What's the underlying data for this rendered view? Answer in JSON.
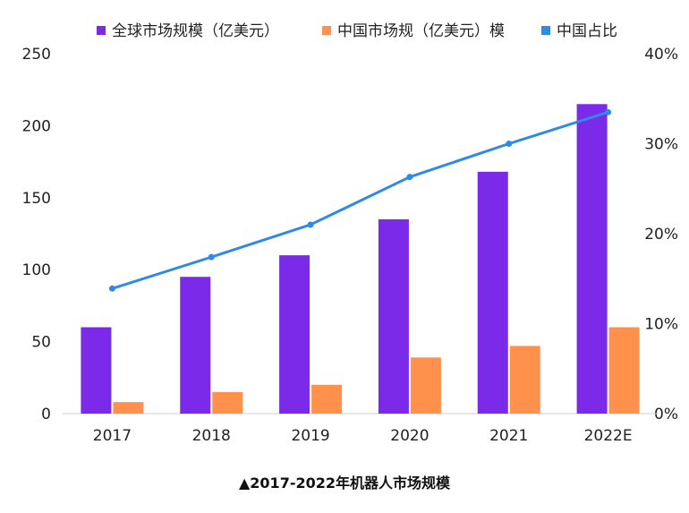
{
  "chart_data": {
    "type": "bar",
    "caption": "▲2017-2022年机器人市场规模",
    "categories": [
      "2017",
      "2018",
      "2019",
      "2020",
      "2021",
      "2022E"
    ],
    "series": [
      {
        "name": "全球市场规模（亿美元）",
        "kind": "bar",
        "axis": "left",
        "color": "#7a2ae8",
        "values": [
          60,
          95,
          110,
          135,
          168,
          215
        ]
      },
      {
        "name": "中国市场规（亿美元）模",
        "kind": "bar",
        "axis": "left",
        "color": "#ff914d",
        "values": [
          8,
          15,
          20,
          39,
          47,
          60
        ]
      },
      {
        "name": "中国占比",
        "kind": "line",
        "axis": "right",
        "color": "#2e8ae6",
        "values": [
          13.9,
          17.4,
          21.0,
          26.3,
          30.0,
          33.5
        ]
      }
    ],
    "y_left": {
      "min": 0,
      "max": 250,
      "ticks": [
        0,
        50,
        100,
        150,
        200,
        250
      ]
    },
    "y_right": {
      "min": 0,
      "max": 40,
      "ticks": [
        "0%",
        "10%",
        "20%",
        "30%",
        "40%"
      ],
      "tick_values": [
        0,
        10,
        20,
        30,
        40
      ]
    },
    "legend_position": "top"
  }
}
